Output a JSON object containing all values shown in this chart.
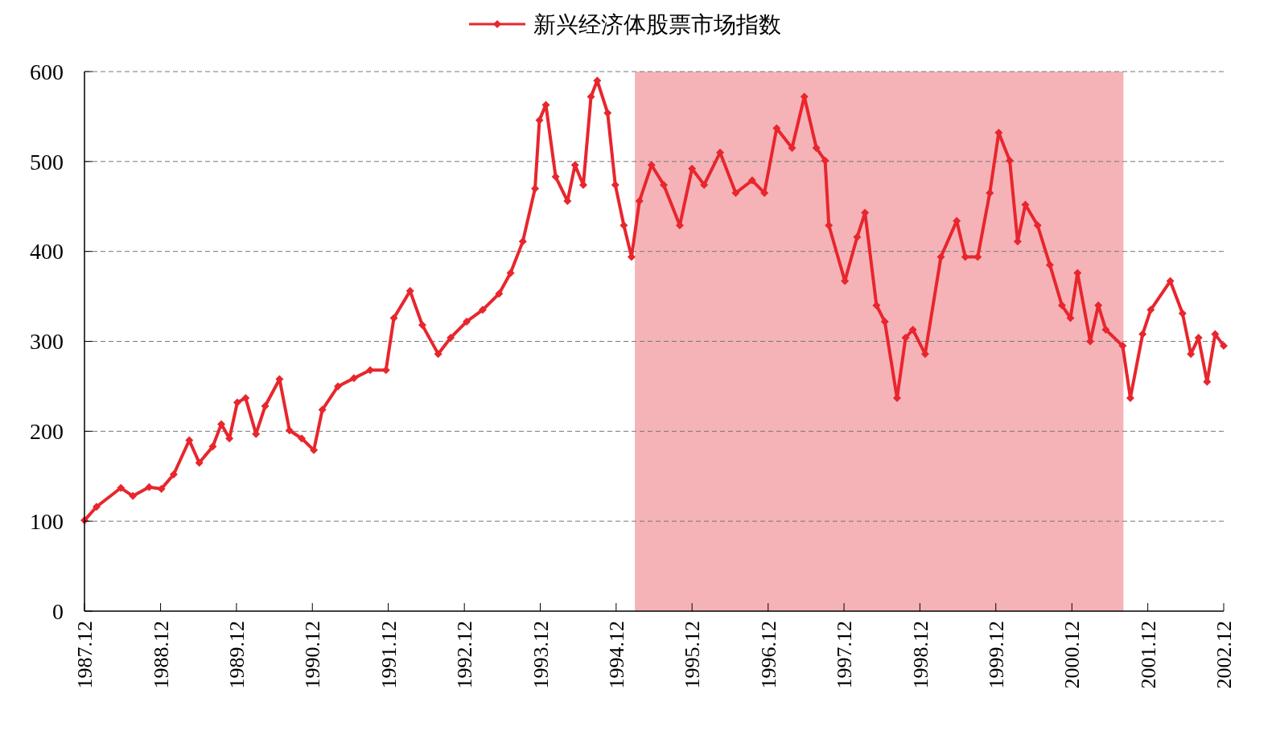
{
  "chart_data": {
    "type": "line",
    "marker": "diamond",
    "line_style": "solid",
    "grid": "y",
    "legend": "top",
    "xlim": [
      "1987-12-01",
      "2002-12-01"
    ],
    "ylim": [
      0,
      600
    ],
    "yticks": [
      0,
      100,
      200,
      300,
      400,
      500,
      600
    ],
    "xticks": [
      {
        "value": "1987-12-01",
        "label": "1987.12"
      },
      {
        "value": "1988-12-01",
        "label": "1988.12"
      },
      {
        "value": "1989-12-01",
        "label": "1989.12"
      },
      {
        "value": "1990-12-01",
        "label": "1990.12"
      },
      {
        "value": "1991-12-01",
        "label": "1991.12"
      },
      {
        "value": "1992-12-01",
        "label": "1992.12"
      },
      {
        "value": "1993-12-01",
        "label": "1993.12"
      },
      {
        "value": "1994-12-01",
        "label": "1994.12"
      },
      {
        "value": "1995-12-01",
        "label": "1995.12"
      },
      {
        "value": "1996-12-01",
        "label": "1996.12"
      },
      {
        "value": "1997-12-01",
        "label": "1997.12"
      },
      {
        "value": "1998-12-01",
        "label": "1998.12"
      },
      {
        "value": "1999-12-01",
        "label": "1999.12"
      },
      {
        "value": "2000-12-01",
        "label": "2000.12"
      },
      {
        "value": "2001-12-01",
        "label": "2001.12"
      },
      {
        "value": "2002-12-01",
        "label": "2002.12"
      }
    ],
    "bands": [
      {
        "axis": "x",
        "from": "1995-03-01",
        "to": "2001-08-06",
        "color": "#f5b3b8"
      }
    ],
    "x": [
      "1987-12-01",
      "1988-01-28",
      "1988-05-24",
      "1988-07-21",
      "1988-10-07",
      "1988-12-05",
      "1989-02-02",
      "1989-04-18",
      "1989-06-05",
      "1989-08-09",
      "1989-09-19",
      "1989-10-28",
      "1989-12-05",
      "1990-01-14",
      "1990-03-05",
      "1990-04-18",
      "1990-06-26",
      "1990-08-13",
      "1990-10-11",
      "1990-12-08",
      "1991-01-18",
      "1991-04-03",
      "1991-06-19",
      "1991-09-05",
      "1991-11-20",
      "1991-12-28",
      "1992-03-15",
      "1992-05-13",
      "1992-07-28",
      "1992-09-26",
      "1992-12-12",
      "1993-02-27",
      "1993-05-17",
      "1993-07-11",
      "1993-09-08",
      "1993-11-06",
      "1993-11-27",
      "1993-12-28",
      "1994-02-13",
      "1994-04-11",
      "1994-05-17",
      "1994-06-26",
      "1994-08-02",
      "1994-09-01",
      "1994-10-21",
      "1994-11-27",
      "1995-01-07",
      "1995-02-13",
      "1995-03-23",
      "1995-05-20",
      "1995-07-18",
      "1995-10-03",
      "1995-12-01",
      "1996-01-28",
      "1996-04-14",
      "1996-06-28",
      "1996-09-15",
      "1996-11-13",
      "1997-01-11",
      "1997-03-26",
      "1997-05-24",
      "1997-07-21",
      "1997-09-01",
      "1997-09-19",
      "1997-12-05",
      "1998-02-02",
      "1998-03-12",
      "1998-05-06",
      "1998-06-15",
      "1998-08-13",
      "1998-09-23",
      "1998-10-28",
      "1998-12-26",
      "1999-03-12",
      "1999-05-27",
      "1999-07-07",
      "1999-09-05",
      "1999-11-02",
      "1999-12-15",
      "2000-02-06",
      "2000-03-15",
      "2000-04-21",
      "2000-06-19",
      "2000-08-17",
      "2000-10-14",
      "2000-11-24",
      "2000-12-28",
      "2001-02-27",
      "2001-04-07",
      "2001-05-13",
      "2001-08-02",
      "2001-09-08",
      "2001-11-06",
      "2001-12-15",
      "2002-03-19",
      "2002-05-17",
      "2002-06-26",
      "2002-08-02",
      "2002-09-12",
      "2002-10-21",
      "2002-12-01"
    ],
    "series": [
      {
        "name": "新兴经济体股票市场指数",
        "color": "#e8262d",
        "values": [
          101,
          116,
          137,
          128,
          138,
          136,
          152,
          190,
          165,
          183,
          208,
          192,
          232,
          237,
          197,
          228,
          258,
          201,
          192,
          179,
          224,
          250,
          259,
          268,
          268,
          326,
          356,
          318,
          286,
          304,
          322,
          335,
          353,
          376,
          411,
          470,
          546,
          563,
          483,
          456,
          496,
          474,
          572,
          590,
          554,
          474,
          429,
          394,
          456,
          496,
          474,
          429,
          492,
          474,
          510,
          465,
          479,
          465,
          537,
          515,
          572,
          515,
          501,
          429,
          367,
          416,
          443,
          340,
          322,
          237,
          304,
          313,
          286,
          394,
          434,
          394,
          394,
          465,
          532,
          501,
          411,
          452,
          429,
          385,
          340,
          326,
          376,
          300,
          340,
          313,
          295,
          237,
          308,
          335,
          367,
          331,
          286,
          304,
          255,
          308,
          295
        ]
      }
    ]
  }
}
